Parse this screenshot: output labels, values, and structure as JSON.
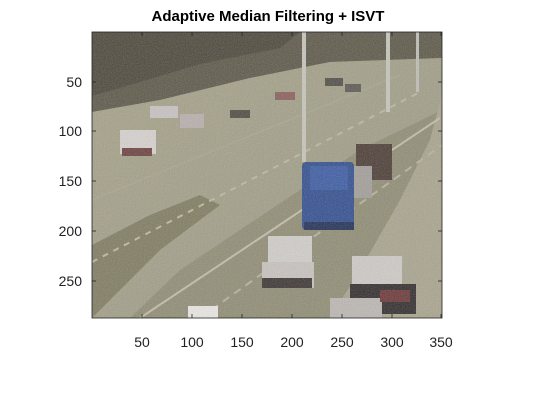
{
  "figure": {
    "title": "Adaptive Median Filtering  + ISVT",
    "y_ticks": [
      "50",
      "100",
      "150",
      "200",
      "250"
    ],
    "x_ticks": [
      "50",
      "100",
      "150",
      "200",
      "250",
      "300",
      "350"
    ]
  }
}
